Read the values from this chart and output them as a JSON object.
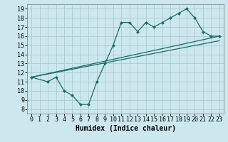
{
  "title": "",
  "xlabel": "Humidex (Indice chaleur)",
  "ylabel": "",
  "bg_color": "#cce8ee",
  "grid_color": "#aacccc",
  "line_color": "#1a6b6b",
  "xlim": [
    -0.5,
    23.5
  ],
  "ylim": [
    7.5,
    19.5
  ],
  "xticks": [
    0,
    1,
    2,
    3,
    4,
    5,
    6,
    7,
    8,
    9,
    10,
    11,
    12,
    13,
    14,
    15,
    16,
    17,
    18,
    19,
    20,
    21,
    22,
    23
  ],
  "yticks": [
    8,
    9,
    10,
    11,
    12,
    13,
    14,
    15,
    16,
    17,
    18,
    19
  ],
  "series1_x": [
    0,
    2,
    3,
    4,
    5,
    6,
    7,
    8,
    9,
    10,
    11,
    12,
    13,
    14,
    15,
    16,
    17,
    18,
    19,
    20,
    21,
    22,
    23
  ],
  "series1_y": [
    11.5,
    11.0,
    11.5,
    10.0,
    9.5,
    8.5,
    8.5,
    11.0,
    13.0,
    15.0,
    17.5,
    17.5,
    16.5,
    17.5,
    17.0,
    17.5,
    18.0,
    18.5,
    19.0,
    18.0,
    16.5,
    16.0,
    16.0
  ],
  "series2_x": [
    0,
    23
  ],
  "series2_y": [
    11.5,
    16.0
  ],
  "series3_x": [
    0,
    23
  ],
  "series3_y": [
    11.5,
    15.5
  ],
  "tick_fontsize": 6,
  "label_fontsize": 7
}
